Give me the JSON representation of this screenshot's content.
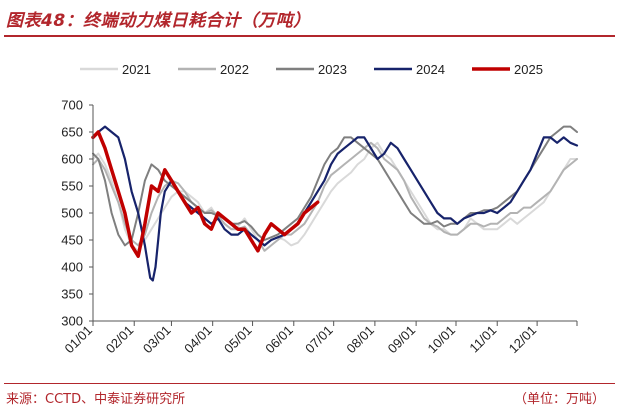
{
  "header": {
    "title": "图表48：终端动力煤日耗合计（万吨）"
  },
  "footer": {
    "source": "来源：CCTD、中泰证券研究所",
    "unit": "（单位：万吨）"
  },
  "chart_data": {
    "type": "line",
    "title": "图表48：终端动力煤日耗合计（万吨）",
    "xlabel": "",
    "ylabel": "",
    "ylim": [
      300,
      700
    ],
    "yticks": [
      300,
      350,
      400,
      450,
      500,
      550,
      600,
      650,
      700
    ],
    "xticks": [
      "01/01",
      "02/01",
      "03/01",
      "04/01",
      "05/01",
      "06/01",
      "07/01",
      "08/01",
      "09/01",
      "10/01",
      "11/01",
      "12/01"
    ],
    "x_domain": [
      1,
      365
    ],
    "x_unit": "day of year",
    "grid": false,
    "legend_position": "top",
    "series": [
      {
        "name": "2021",
        "color": "#d9d9d9",
        "width": 2,
        "x": [
          1,
          5,
          10,
          15,
          20,
          25,
          30,
          35,
          40,
          45,
          50,
          55,
          60,
          65,
          70,
          75,
          80,
          85,
          90,
          95,
          100,
          105,
          110,
          115,
          120,
          125,
          130,
          135,
          140,
          145,
          150,
          155,
          160,
          165,
          170,
          175,
          180,
          185,
          190,
          195,
          200,
          205,
          210,
          215,
          220,
          225,
          230,
          235,
          240,
          245,
          250,
          255,
          260,
          265,
          270,
          275,
          280,
          285,
          290,
          295,
          300,
          305,
          310,
          315,
          320,
          325,
          330,
          335,
          340,
          345,
          350,
          355,
          360,
          365
        ],
        "values": [
          600,
          610,
          590,
          560,
          520,
          470,
          440,
          430,
          450,
          470,
          490,
          510,
          530,
          540,
          540,
          530,
          520,
          500,
          510,
          490,
          480,
          470,
          475,
          490,
          470,
          450,
          440,
          450,
          455,
          450,
          440,
          445,
          460,
          480,
          500,
          520,
          540,
          555,
          565,
          575,
          590,
          600,
          620,
          630,
          610,
          600,
          580,
          560,
          540,
          520,
          500,
          480,
          470,
          470,
          460,
          460,
          470,
          490,
          480,
          470,
          470,
          470,
          480,
          490,
          480,
          490,
          500,
          510,
          520,
          540,
          560,
          580,
          600,
          600
        ]
      },
      {
        "name": "2022",
        "color": "#b3b3b3",
        "width": 2,
        "x": [
          1,
          5,
          10,
          15,
          20,
          25,
          30,
          35,
          40,
          45,
          50,
          55,
          60,
          65,
          70,
          75,
          80,
          85,
          90,
          95,
          100,
          105,
          110,
          115,
          120,
          125,
          130,
          135,
          140,
          145,
          150,
          155,
          160,
          165,
          170,
          175,
          180,
          185,
          190,
          195,
          200,
          205,
          210,
          215,
          220,
          225,
          230,
          235,
          240,
          245,
          250,
          255,
          260,
          265,
          270,
          275,
          280,
          285,
          290,
          295,
          300,
          305,
          310,
          315,
          320,
          325,
          330,
          335,
          340,
          345,
          350,
          355,
          360,
          365
        ],
        "values": [
          590,
          600,
          580,
          550,
          520,
          480,
          450,
          440,
          460,
          500,
          530,
          550,
          560,
          555,
          540,
          520,
          510,
          500,
          505,
          495,
          480,
          470,
          470,
          475,
          460,
          450,
          430,
          440,
          450,
          460,
          460,
          470,
          480,
          500,
          520,
          550,
          570,
          580,
          590,
          600,
          610,
          620,
          630,
          620,
          600,
          590,
          580,
          560,
          530,
          510,
          490,
          480,
          475,
          465,
          460,
          460,
          470,
          480,
          480,
          475,
          480,
          480,
          490,
          500,
          500,
          510,
          510,
          520,
          530,
          540,
          560,
          580,
          590,
          600
        ]
      },
      {
        "name": "2023",
        "color": "#7f7f7f",
        "width": 2,
        "x": [
          1,
          5,
          10,
          15,
          20,
          25,
          30,
          35,
          40,
          45,
          50,
          55,
          60,
          65,
          70,
          75,
          80,
          85,
          90,
          95,
          100,
          105,
          110,
          115,
          120,
          125,
          130,
          135,
          140,
          145,
          150,
          155,
          160,
          165,
          170,
          175,
          180,
          185,
          190,
          195,
          200,
          205,
          210,
          215,
          220,
          225,
          230,
          235,
          240,
          245,
          250,
          255,
          260,
          265,
          270,
          275,
          280,
          285,
          290,
          295,
          300,
          305,
          310,
          315,
          320,
          325,
          330,
          335,
          340,
          345,
          350,
          355,
          360,
          365
        ],
        "values": [
          610,
          600,
          560,
          500,
          460,
          440,
          450,
          500,
          560,
          590,
          580,
          560,
          550,
          540,
          530,
          520,
          510,
          500,
          500,
          495,
          490,
          480,
          480,
          485,
          475,
          460,
          450,
          455,
          460,
          470,
          480,
          490,
          510,
          530,
          560,
          590,
          610,
          620,
          640,
          640,
          630,
          620,
          610,
          600,
          580,
          560,
          540,
          520,
          500,
          490,
          480,
          480,
          485,
          475,
          480,
          480,
          490,
          500,
          500,
          505,
          505,
          510,
          520,
          530,
          540,
          560,
          580,
          600,
          620,
          640,
          650,
          660,
          660,
          650
        ]
      },
      {
        "name": "2024",
        "color": "#17236b",
        "width": 2.2,
        "x": [
          1,
          5,
          10,
          15,
          20,
          25,
          30,
          35,
          40,
          42,
          44,
          46,
          48,
          50,
          52,
          55,
          60,
          65,
          70,
          75,
          80,
          85,
          90,
          95,
          100,
          105,
          110,
          115,
          120,
          125,
          130,
          135,
          140,
          145,
          150,
          155,
          160,
          165,
          170,
          175,
          180,
          185,
          190,
          195,
          200,
          205,
          210,
          215,
          220,
          225,
          230,
          235,
          240,
          245,
          250,
          255,
          260,
          265,
          270,
          275,
          280,
          285,
          290,
          295,
          300,
          305,
          310,
          315,
          320,
          325,
          330,
          335,
          340,
          345,
          350,
          355,
          360,
          365
        ],
        "values": [
          640,
          650,
          660,
          650,
          640,
          600,
          540,
          500,
          440,
          410,
          380,
          375,
          400,
          450,
          500,
          540,
          560,
          540,
          520,
          510,
          500,
          490,
          480,
          490,
          470,
          460,
          460,
          470,
          460,
          450,
          440,
          450,
          455,
          460,
          470,
          480,
          500,
          520,
          540,
          560,
          590,
          610,
          620,
          630,
          640,
          640,
          620,
          600,
          610,
          630,
          620,
          600,
          580,
          560,
          540,
          520,
          500,
          490,
          490,
          480,
          490,
          495,
          500,
          500,
          505,
          500,
          510,
          520,
          540,
          560,
          580,
          610,
          640,
          640,
          630,
          640,
          630,
          625
        ]
      },
      {
        "name": "2025",
        "color": "#c00000",
        "width": 3.5,
        "x": [
          1,
          5,
          10,
          15,
          20,
          25,
          30,
          35,
          40,
          45,
          50,
          55,
          60,
          65,
          70,
          75,
          80,
          85,
          90,
          95,
          100,
          105,
          110,
          115,
          120,
          125,
          130,
          135,
          140,
          145,
          150,
          155,
          160,
          165,
          170
        ],
        "values": [
          640,
          650,
          620,
          580,
          540,
          500,
          440,
          420,
          480,
          550,
          540,
          580,
          560,
          540,
          520,
          500,
          510,
          480,
          470,
          500,
          490,
          480,
          470,
          470,
          450,
          430,
          460,
          480,
          470,
          460,
          470,
          480,
          500,
          510,
          520
        ]
      }
    ]
  }
}
